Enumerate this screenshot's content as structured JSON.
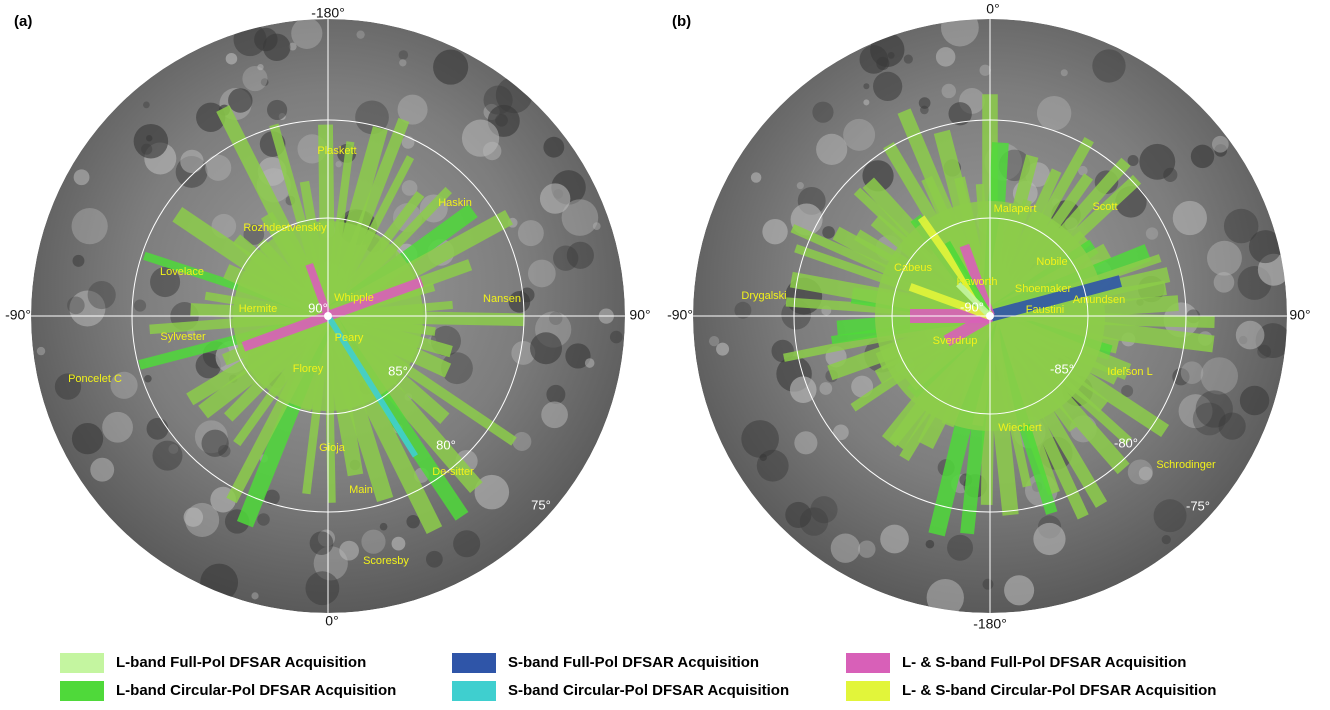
{
  "panels": [
    {
      "label": "(a)",
      "top": "-180°",
      "bottom": "0°",
      "left": "-90°",
      "right": "90°",
      "rings": [
        "90°",
        "85°",
        "80°",
        "75°"
      ],
      "craters": [
        "Plaskett",
        "Haskin",
        "Rozhdestvenskiy",
        "Lovelace",
        "Nansen",
        "Hermite",
        "Whipple",
        "Sylvester",
        "Peary",
        "Florey",
        "Poncelet C",
        "Gioja",
        "De-sitter",
        "Main",
        "Scoresby"
      ]
    },
    {
      "label": "(b)",
      "top": "0°",
      "bottom": "-180°",
      "left": "-90°",
      "right": "90°",
      "rings": [
        "-90°",
        "-85°",
        "-80°",
        "-75°"
      ],
      "craters": [
        "Malapert",
        "Scott",
        "Cabeus",
        "Nobile",
        "Haworth",
        "Shoemaker",
        "Drygalski",
        "Amundsen",
        "Faustini",
        "Sverdrup",
        "Ideľson L",
        "Wiechert",
        "Schrodinger"
      ]
    }
  ],
  "legend": [
    {
      "label": "L-band Full-Pol DFSAR Acquisition",
      "color": "#c4f5a0"
    },
    {
      "label": "L-band Circular-Pol DFSAR Acquisition",
      "color": "#4fd93a"
    },
    {
      "label": "S-band Full-Pol DFSAR Acquisition",
      "color": "#2f55a8"
    },
    {
      "label": "S-band Circular-Pol DFSAR Acquisition",
      "color": "#3fcfcf"
    },
    {
      "label": "L- & S-band Full-Pol DFSAR Acquisition",
      "color": "#d860b8"
    },
    {
      "label": "L- & S-band Circular-Pol DFSAR Acquisition",
      "color": "#e2f53a"
    }
  ]
}
